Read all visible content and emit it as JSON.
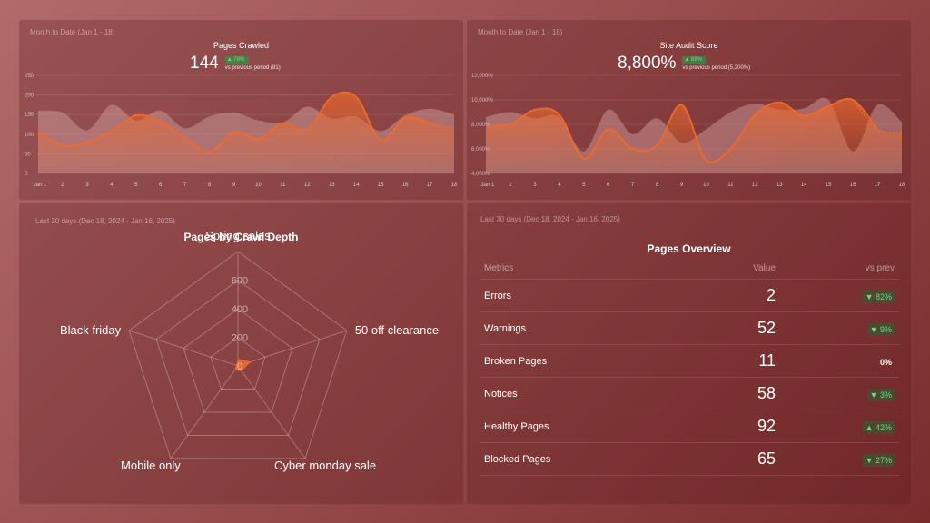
{
  "colors": {
    "accent": "#f06a2a",
    "ghost": "#d4a3a3",
    "positive": "#69d98a"
  },
  "panel1": {
    "period": "Month to Date (Jan 1 - 18)",
    "title": "Pages Crawled",
    "value": "144",
    "badge": "▲ 78%",
    "prev": "vs previous period (81)"
  },
  "panel2": {
    "period": "Month to Date (Jan 1 - 18)",
    "title": "Site Audit Score",
    "value": "8,800%",
    "badge": "▲ 69%",
    "prev": "vs previous period (5,200%)"
  },
  "panel3": {
    "period": "Last 30 days (Dec 18, 2024 - Jan 16, 2025)",
    "title": "Pages by Crawl Depth"
  },
  "panel4": {
    "period": "Last 30 days (Dec 18, 2024 - Jan 16, 2025)",
    "title": "Pages Overview",
    "headers": {
      "metric": "Metrics",
      "value": "Value",
      "vs": "vs prev"
    },
    "rows": [
      {
        "metric": "Errors",
        "value": "2",
        "change": "▼ 82%"
      },
      {
        "metric": "Warnings",
        "value": "52",
        "change": "▼ 9%"
      },
      {
        "metric": "Broken Pages",
        "value": "11",
        "change": "0%"
      },
      {
        "metric": "Notices",
        "value": "58",
        "change": "▼ 3%"
      },
      {
        "metric": "Healthy Pages",
        "value": "92",
        "change": "▲ 42%"
      },
      {
        "metric": "Blocked Pages",
        "value": "65",
        "change": "▼ 27%"
      }
    ]
  },
  "chart_data": [
    {
      "type": "area",
      "title": "Pages Crawled",
      "x": [
        "Jan 1",
        "2",
        "3",
        "4",
        "5",
        "6",
        "7",
        "8",
        "9",
        "10",
        "11",
        "12",
        "13",
        "14",
        "15",
        "16",
        "17",
        "18"
      ],
      "ylim": [
        0,
        250
      ],
      "yticks": [
        "0",
        "50",
        "100",
        "150",
        "200",
        "250"
      ],
      "series": [
        {
          "values": [
            105,
            70,
            80,
            108,
            148,
            132,
            90,
            55,
            105,
            88,
            128,
            112,
            195,
            195,
            85,
            142,
            128,
            115
          ]
        },
        {
          "values": [
            160,
            155,
            110,
            175,
            135,
            160,
            115,
            145,
            155,
            135,
            130,
            170,
            140,
            145,
            108,
            148,
            165,
            150
          ]
        }
      ]
    },
    {
      "type": "area",
      "title": "Site Audit Score",
      "x": [
        "Jan 1",
        "2",
        "3",
        "4",
        "5",
        "6",
        "7",
        "8",
        "9",
        "10",
        "11",
        "12",
        "13",
        "14",
        "15",
        "16",
        "17",
        "18"
      ],
      "ylim": [
        4000,
        12000
      ],
      "yticks": [
        "4,000%",
        "6,000%",
        "8,000%",
        "10,000%",
        "12,000%"
      ],
      "series": [
        {
          "values": [
            7800,
            8000,
            9200,
            8800,
            5200,
            7600,
            6000,
            6300,
            9600,
            5100,
            6000,
            8800,
            9800,
            8700,
            9500,
            10000,
            7600,
            7300
          ]
        },
        {
          "values": [
            8600,
            9000,
            8500,
            8600,
            5800,
            9200,
            7200,
            8500,
            6500,
            7600,
            9000,
            9700,
            9200,
            9300,
            10000,
            5800,
            9600,
            8200
          ]
        }
      ]
    },
    {
      "type": "radar",
      "title": "Pages by Crawl Depth",
      "categories": [
        "Spring sales",
        "50 off clearance",
        "Cyber monday sale",
        "Mobile only",
        "Black friday"
      ],
      "values": [
        45,
        90,
        40,
        35,
        10
      ],
      "rlim": [
        0,
        800
      ],
      "rticks": [
        "0",
        "200",
        "400",
        "600"
      ]
    }
  ]
}
